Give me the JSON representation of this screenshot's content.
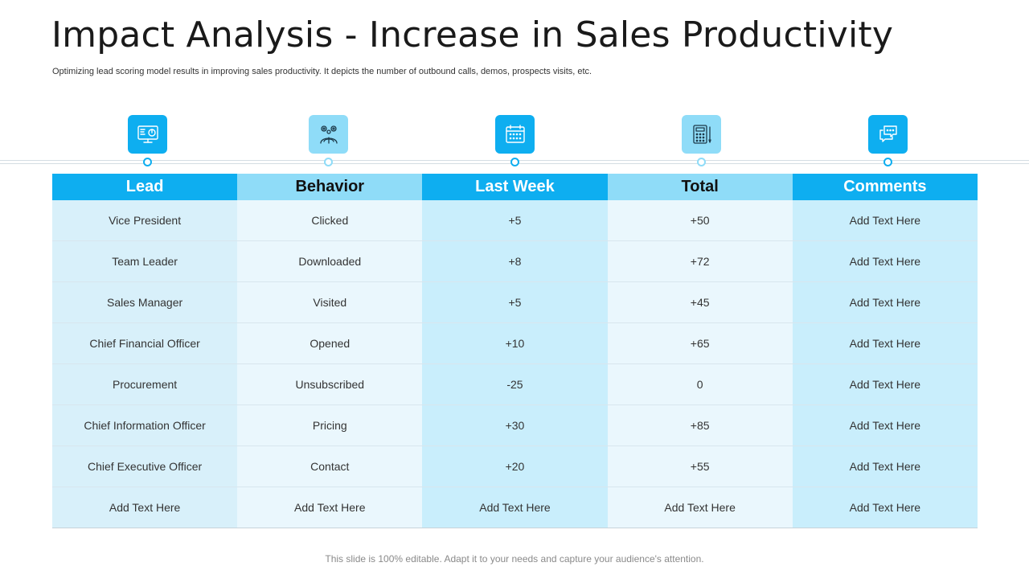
{
  "title": "Impact Analysis - Increase in Sales Productivity",
  "subtitle": "Optimizing lead scoring model results in improving sales productivity. It depicts the number of outbound calls, demos, prospects visits, etc.",
  "icons": [
    {
      "name": "monitor-chart-icon",
      "style": "dark"
    },
    {
      "name": "brain-gears-icon",
      "style": "light"
    },
    {
      "name": "calendar-icon",
      "style": "dark"
    },
    {
      "name": "calculator-icon",
      "style": "light"
    },
    {
      "name": "chat-bubbles-icon",
      "style": "dark"
    }
  ],
  "colors": {
    "accent": "#0eaef0",
    "accent_light": "#8fdcf8",
    "cell_dark": "#c9eefc",
    "cell_light": "#eaf7fd"
  },
  "table": {
    "headers": [
      "Lead",
      "Behavior",
      "Last Week",
      "Total",
      "Comments"
    ],
    "rows": [
      [
        "Vice President",
        "Clicked",
        "+5",
        "+50",
        "Add Text Here"
      ],
      [
        "Team Leader",
        "Downloaded",
        "+8",
        "+72",
        "Add Text Here"
      ],
      [
        "Sales Manager",
        "Visited",
        "+5",
        "+45",
        "Add Text Here"
      ],
      [
        "Chief Financial Officer",
        "Opened",
        "+10",
        "+65",
        "Add Text Here"
      ],
      [
        "Procurement",
        "Unsubscribed",
        "-25",
        "0",
        "Add Text Here"
      ],
      [
        "Chief Information Officer",
        "Pricing",
        "+30",
        "+85",
        "Add Text Here"
      ],
      [
        "Chief Executive Officer",
        "Contact",
        "+20",
        "+55",
        "Add Text Here"
      ],
      [
        "Add Text Here",
        "Add Text Here",
        "Add Text Here",
        "Add Text Here",
        "Add Text Here"
      ]
    ]
  },
  "footer": "This slide is 100% editable. Adapt it to your needs and capture your audience's attention."
}
